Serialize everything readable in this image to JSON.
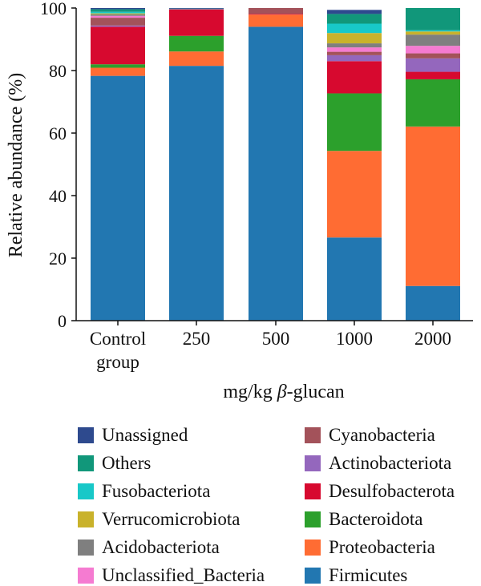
{
  "chart_data": {
    "type": "stacked-bar",
    "ylabel": "Relative abundance (%)",
    "xlabel": "mg/kg β-glucan",
    "ylim": [
      0,
      100
    ],
    "yticks": [
      0,
      20,
      40,
      60,
      80,
      100
    ],
    "categories": [
      {
        "lines": [
          "Control",
          "group"
        ]
      },
      {
        "lines": [
          "250"
        ]
      },
      {
        "lines": [
          "500"
        ]
      },
      {
        "lines": [
          "1000"
        ]
      },
      {
        "lines": [
          "2000"
        ]
      }
    ],
    "series": [
      {
        "name": "Firmicutes",
        "color": "#2277B1",
        "values": [
          78.3,
          81.5,
          94.0,
          26.6,
          11.1
        ]
      },
      {
        "name": "Proteobacteria",
        "color": "#FF6C33",
        "values": [
          2.6,
          4.6,
          3.9,
          27.7,
          51.0
        ]
      },
      {
        "name": "Bacteroidota",
        "color": "#2CA02C",
        "values": [
          1.1,
          5.0,
          0.0,
          18.4,
          15.1
        ]
      },
      {
        "name": "Desulfobacterota",
        "color": "#D7092F",
        "values": [
          12.0,
          8.4,
          0.2,
          10.3,
          2.4
        ]
      },
      {
        "name": "Actinobacteriota",
        "color": "#9467BD",
        "values": [
          0.4,
          0.1,
          0.0,
          1.9,
          4.3
        ]
      },
      {
        "name": "Cyanobacteria",
        "color": "#A3525A",
        "values": [
          2.5,
          0.1,
          1.9,
          1.1,
          1.6
        ]
      },
      {
        "name": "Unclassified_Bacteria",
        "color": "#F57BD1",
        "values": [
          0.6,
          0.0,
          0.0,
          1.4,
          2.4
        ]
      },
      {
        "name": "Acidobacteriota",
        "color": "#7F7F7F",
        "values": [
          0.5,
          0.0,
          0.0,
          1.3,
          3.6
        ]
      },
      {
        "name": "Verrucomicrobiota",
        "color": "#C9B22B",
        "values": [
          0.3,
          0.0,
          0.0,
          3.3,
          1.0
        ]
      },
      {
        "name": "Fusobacteriota",
        "color": "#18C8C8",
        "values": [
          0.5,
          0.0,
          0.0,
          3.0,
          0.4
        ]
      },
      {
        "name": "Others",
        "color": "#11977A",
        "values": [
          0.8,
          0.1,
          0.0,
          3.1,
          7.1
        ]
      },
      {
        "name": "Unassigned",
        "color": "#2E4A8E",
        "values": [
          0.4,
          0.2,
          0.0,
          1.3,
          0.0
        ]
      }
    ],
    "legend": {
      "placement": "bottom",
      "left_column": [
        "Unassigned",
        "Others",
        "Fusobacteriota",
        "Verrucomicrobiota",
        "Acidobacteriota",
        "Unclassified_Bacteria"
      ],
      "right_column": [
        "Cyanobacteria",
        "Actinobacteriota",
        "Desulfobacterota",
        "Bacteroidota",
        "Proteobacteria",
        "Firmicutes"
      ]
    }
  }
}
